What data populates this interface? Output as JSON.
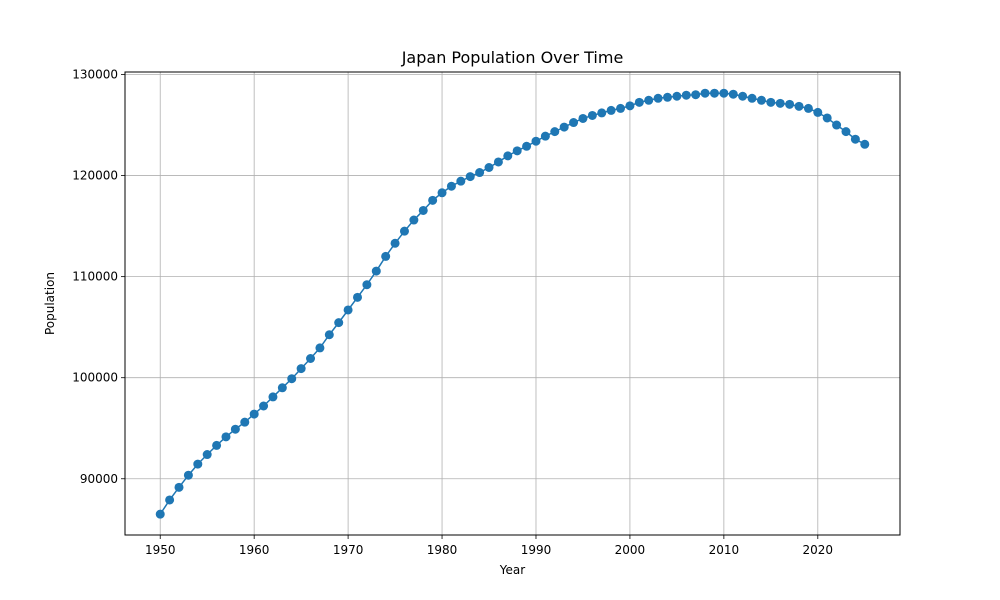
{
  "chart_data": {
    "type": "line",
    "title": "Japan Population Over Time",
    "xlabel": "Year",
    "ylabel": "Population",
    "xlim": [
      1946.25,
      2028.75
    ],
    "ylim": [
      84435,
      130250
    ],
    "xticks": [
      "1950",
      "1960",
      "1970",
      "1980",
      "1990",
      "2000",
      "2010",
      "2020"
    ],
    "yticks": [
      "90000",
      "100000",
      "110000",
      "120000",
      "130000"
    ],
    "grid": true,
    "markers": true,
    "color": "#1f77b4",
    "series": [
      {
        "x": [
          1950,
          1951,
          1952,
          1953,
          1954,
          1955,
          1956,
          1957,
          1958,
          1959,
          1960,
          1961,
          1962,
          1963,
          1964,
          1965,
          1966,
          1967,
          1968,
          1969,
          1970,
          1971,
          1972,
          1973,
          1974,
          1975,
          1976,
          1977,
          1978,
          1979,
          1980,
          1981,
          1982,
          1983,
          1984,
          1985,
          1986,
          1987,
          1988,
          1989,
          1990,
          1991,
          1992,
          1993,
          1994,
          1995,
          1996,
          1997,
          1998,
          1999,
          2000,
          2001,
          2002,
          2003,
          2004,
          2005,
          2006,
          2007,
          2008,
          2009,
          2010,
          2011,
          2012,
          2013,
          2014,
          2015,
          2016,
          2017,
          2018,
          2019,
          2020,
          2021,
          2022,
          2023,
          2024,
          2025
        ],
        "values": [
          86500,
          87900,
          89150,
          90350,
          91450,
          92400,
          93300,
          94150,
          94900,
          95600,
          96400,
          97200,
          98100,
          99000,
          99900,
          100900,
          101900,
          102950,
          104250,
          105450,
          106700,
          107950,
          109200,
          110550,
          112000,
          113300,
          114500,
          115600,
          116550,
          117550,
          118300,
          118950,
          119450,
          119900,
          120300,
          120800,
          121350,
          121950,
          122450,
          122900,
          123400,
          123900,
          124350,
          124800,
          125250,
          125650,
          125950,
          126200,
          126450,
          126650,
          126900,
          127250,
          127450,
          127650,
          127750,
          127850,
          127950,
          128000,
          128150,
          128150,
          128150,
          128050,
          127850,
          127650,
          127450,
          127250,
          127150,
          127050,
          126850,
          126650,
          126250,
          125700,
          125000,
          124350,
          123600,
          123100
        ]
      }
    ]
  }
}
